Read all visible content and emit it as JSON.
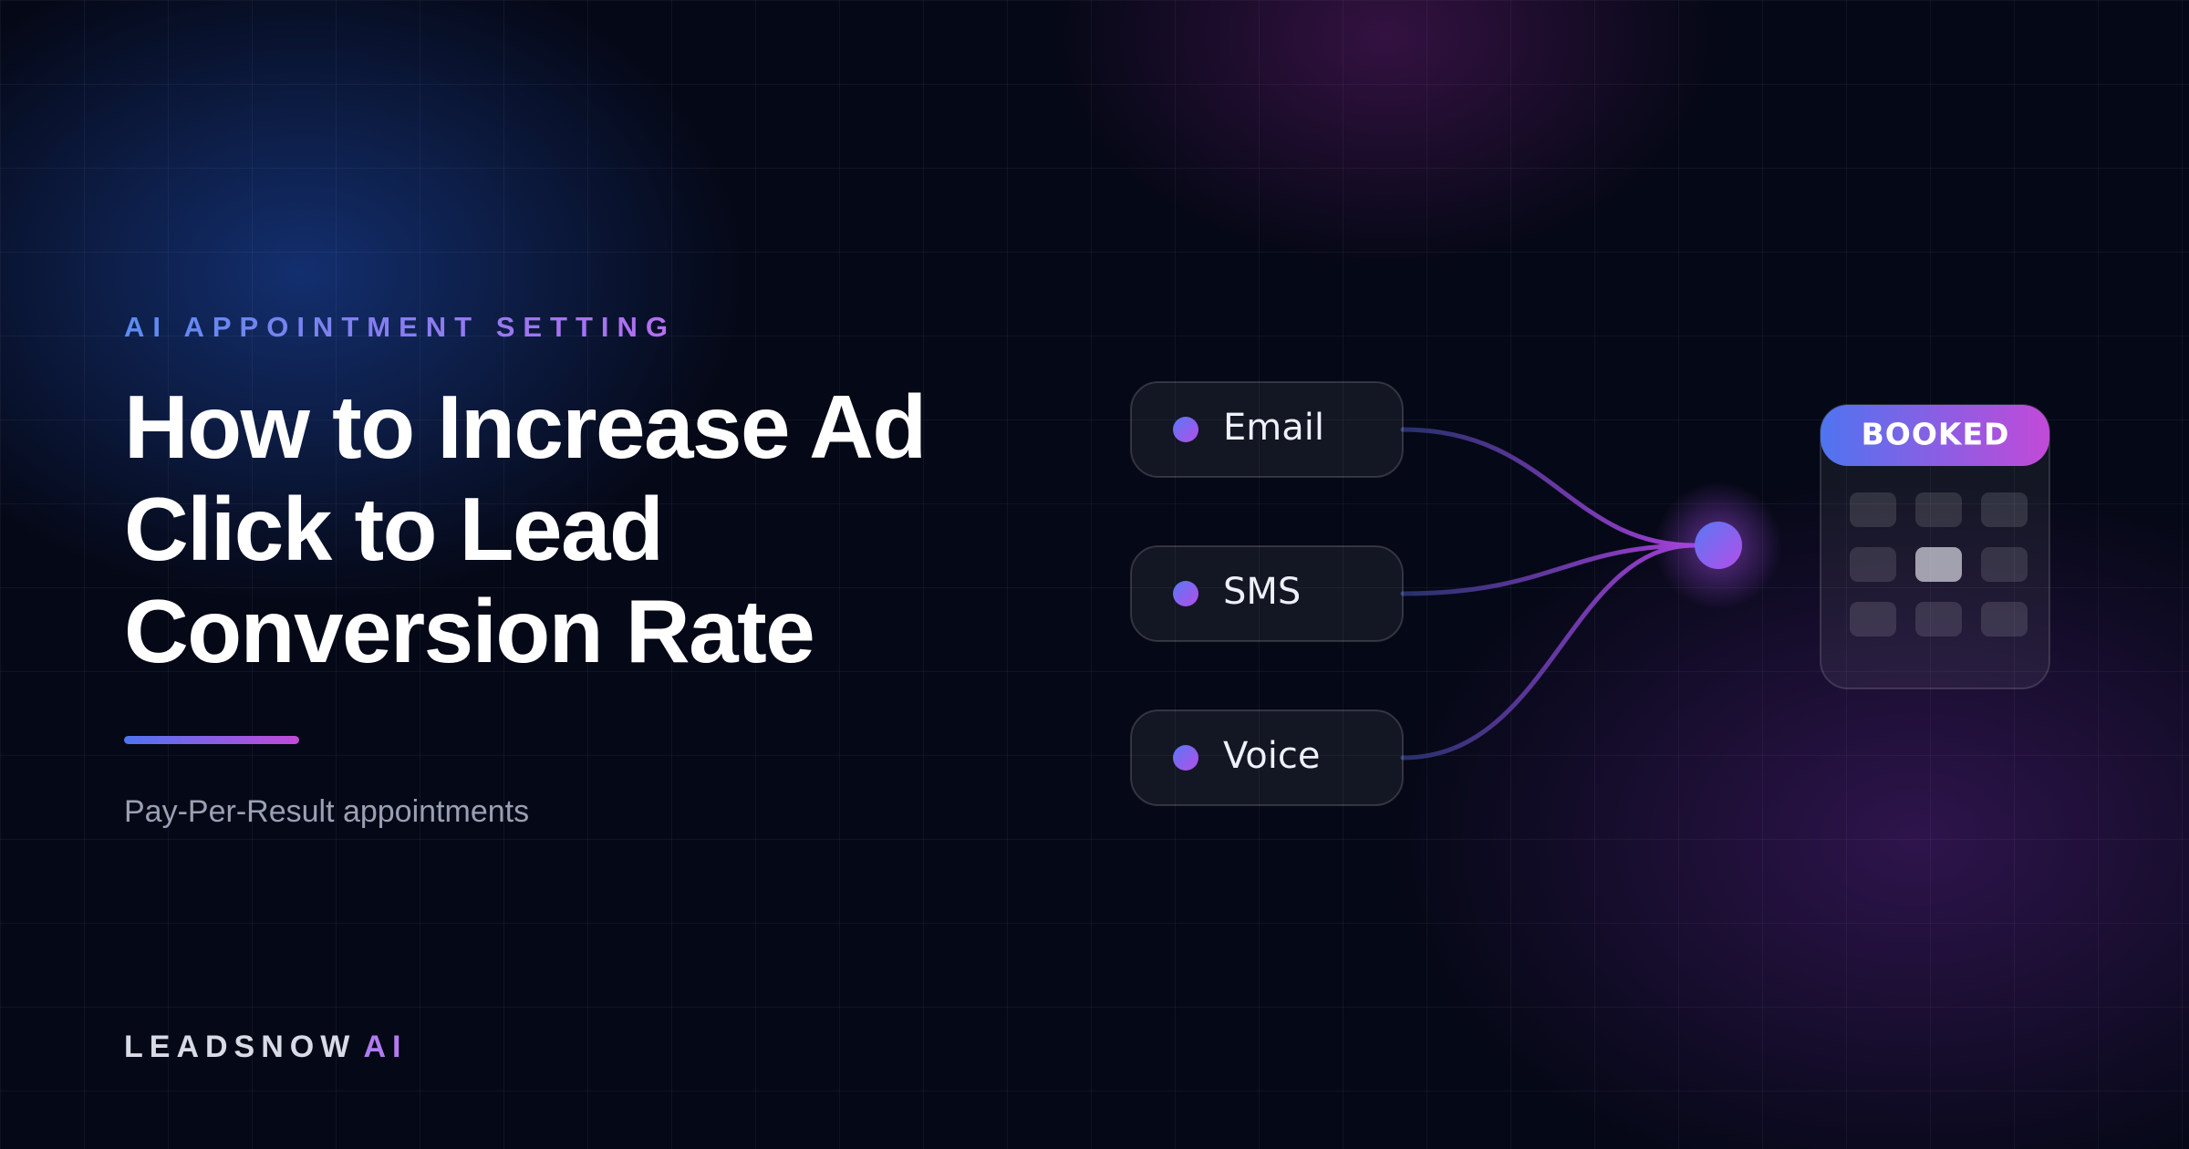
{
  "eyebrow": "AI APPOINTMENT SETTING",
  "title_lines": [
    "How to Increase Ad",
    "Click to Lead",
    "Conversion Rate"
  ],
  "subtitle": "Pay-Per-Result appointments",
  "channels": [
    "Email",
    "SMS",
    "Voice"
  ],
  "badge": "BOOKED",
  "brand": {
    "name": "LEADSNOW",
    "suffix": "AI"
  }
}
